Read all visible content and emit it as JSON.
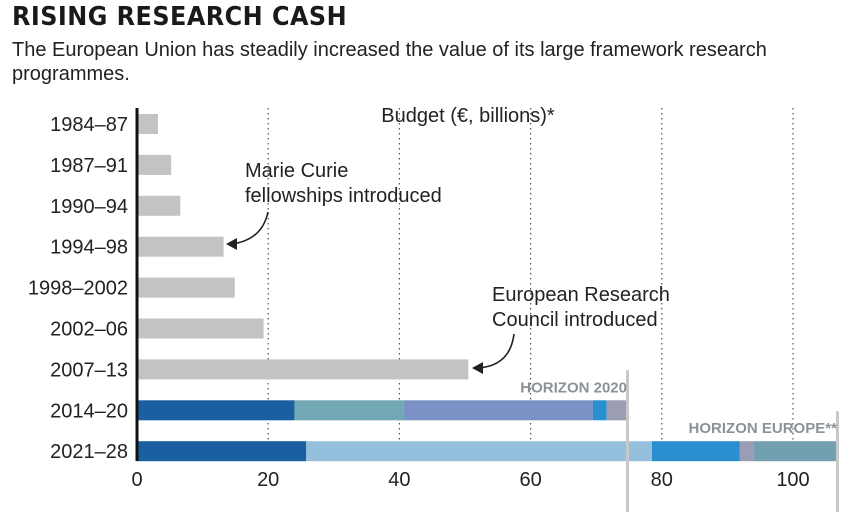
{
  "chart_data": {
    "type": "bar",
    "title": "RISING RESEARCH CASH",
    "subtitle": "The European Union has steadily increased the value of its large framework research programmes.",
    "xlabel": "Budget (€, billions)*",
    "xlim": [
      0,
      105
    ],
    "xticks": [
      0,
      20,
      40,
      60,
      80,
      100
    ],
    "categories": [
      "1984–87",
      "1987–91",
      "1990–94",
      "1994–98",
      "1998–2002",
      "2002–06",
      "2007–13",
      "2014–20",
      "2021–28"
    ],
    "values": [
      3.2,
      5.2,
      6.6,
      13.2,
      14.9,
      19.3,
      50.5,
      75.0,
      107.0
    ],
    "stacked": [
      {
        "category": "2014–20",
        "segments": [
          {
            "value": 24.0,
            "color": "#1a5fa0"
          },
          {
            "value": 16.6,
            "color": "#72a8b4"
          },
          {
            "value": 28.9,
            "color": "#7b92c6"
          },
          {
            "value": 2.1,
            "color": "#2a8fd0"
          },
          {
            "value": 3.4,
            "color": "#9a9db4"
          }
        ]
      },
      {
        "category": "2021–28",
        "segments": [
          {
            "value": 25.8,
            "color": "#1a5fa0"
          },
          {
            "value": 52.7,
            "color": "#95c0dd"
          },
          {
            "value": 13.4,
            "color": "#2a8fd0"
          },
          {
            "value": 2.1,
            "color": "#9a9db4"
          },
          {
            "value": 13.0,
            "color": "#72a0b0"
          }
        ]
      }
    ],
    "plain_color": "#c3c3c3",
    "annotations": [
      {
        "lines": [
          "Marie Curie",
          "fellowships introduced"
        ],
        "target_category": "1994–98"
      },
      {
        "lines": [
          "European Research",
          "Council introduced"
        ],
        "target_category": "2007–13"
      }
    ],
    "programme_labels": [
      {
        "text": "HORIZON 2020",
        "category": "2014–20",
        "end_value": 75.0
      },
      {
        "text": "HORIZON EUROPE**",
        "category": "2021–28",
        "end_value": 107.0
      }
    ]
  }
}
